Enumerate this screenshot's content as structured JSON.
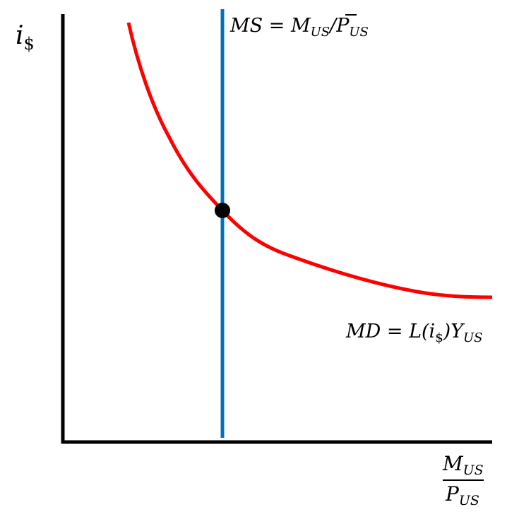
{
  "y_axis": {
    "symbol": "i",
    "subscript": "$"
  },
  "x_axis": {
    "numerator": {
      "symbol": "M",
      "subscript": "US"
    },
    "denominator": {
      "symbol": "P",
      "subscript": "US"
    }
  },
  "money_supply": {
    "lhs": "MS = ",
    "m_symbol": "M",
    "m_subscript": "US",
    "slash": "/",
    "p_symbol": "P",
    "p_subscript": "US",
    "color": "#0070c0"
  },
  "money_demand": {
    "lhs": "MD = L(",
    "i_symbol": "i",
    "i_subscript": "$",
    "close": ")",
    "y_symbol": "Y",
    "y_subscript": "US",
    "color": "#ff0000"
  },
  "equilibrium_color": "#000000"
}
